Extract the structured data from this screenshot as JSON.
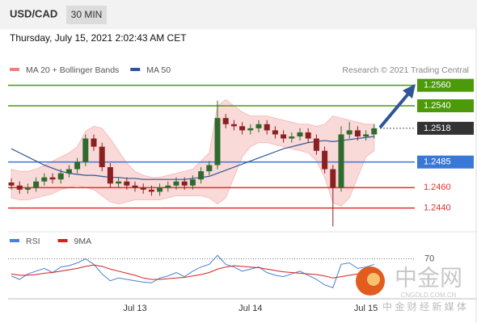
{
  "header": {
    "symbol": "USD/CAD",
    "timeframe": "30 MIN",
    "timestamp": "Thursday, July 15, 2021 2:02:43 AM CET"
  },
  "chart_data": [
    {
      "type": "candlestick",
      "credit": "Research © 2021 Trading Central",
      "categories": [
        null,
        null,
        null,
        null,
        null,
        null,
        null,
        null,
        null,
        null,
        null,
        null,
        null,
        null,
        null,
        "Jul 13",
        null,
        null,
        null,
        null,
        null,
        null,
        null,
        null,
        null,
        null,
        null,
        null,
        null,
        "Jul 14",
        null,
        null,
        null,
        null,
        null,
        null,
        null,
        null,
        null,
        null,
        null,
        null,
        null,
        "Jul 15",
        null
      ],
      "open": [
        1.2465,
        1.2462,
        1.2458,
        1.246,
        1.2466,
        1.247,
        1.2468,
        1.2474,
        1.2478,
        1.2485,
        1.2508,
        1.25,
        1.248,
        1.2464,
        1.2466,
        1.2462,
        1.246,
        1.2458,
        1.2456,
        1.246,
        1.2462,
        1.2466,
        1.2462,
        1.2468,
        1.2476,
        1.2482,
        1.2528,
        1.2522,
        1.252,
        1.2516,
        1.2518,
        1.2522,
        1.2516,
        1.2512,
        1.2508,
        1.251,
        1.2514,
        1.2508,
        1.2496,
        1.2478,
        1.246,
        1.2512,
        1.2516,
        1.251,
        1.2512
      ],
      "high": [
        1.2469,
        1.2466,
        1.2464,
        1.247,
        1.2474,
        1.2474,
        1.2478,
        1.2482,
        1.2489,
        1.2512,
        1.2512,
        1.2504,
        1.2484,
        1.247,
        1.247,
        1.2466,
        1.2464,
        1.2462,
        1.2464,
        1.2466,
        1.247,
        1.247,
        1.2472,
        1.248,
        1.2486,
        1.2545,
        1.2532,
        1.2526,
        1.2524,
        1.2522,
        1.2526,
        1.2526,
        1.252,
        1.2516,
        1.2514,
        1.2518,
        1.2518,
        1.2512,
        1.25,
        1.2482,
        1.252,
        1.2524,
        1.252,
        1.2516,
        1.2522
      ],
      "low": [
        1.2458,
        1.2454,
        1.2454,
        1.2456,
        1.2462,
        1.2464,
        1.2464,
        1.247,
        1.2474,
        1.2481,
        1.2496,
        1.2476,
        1.246,
        1.246,
        1.2458,
        1.2456,
        1.2454,
        1.2452,
        1.2452,
        1.2456,
        1.2458,
        1.2458,
        1.2458,
        1.2464,
        1.2472,
        1.2478,
        1.2518,
        1.2516,
        1.2512,
        1.2512,
        1.2514,
        1.2512,
        1.2508,
        1.2504,
        1.2504,
        1.2506,
        1.2504,
        1.2492,
        1.2474,
        1.2422,
        1.2456,
        1.2508,
        1.2506,
        1.2506,
        1.2508
      ],
      "close": [
        1.2462,
        1.2458,
        1.246,
        1.2466,
        1.247,
        1.2468,
        1.2474,
        1.2478,
        1.2485,
        1.2508,
        1.25,
        1.248,
        1.2464,
        1.2466,
        1.2462,
        1.246,
        1.2458,
        1.2456,
        1.246,
        1.2462,
        1.2466,
        1.2462,
        1.2468,
        1.2476,
        1.2482,
        1.2528,
        1.2522,
        1.252,
        1.2516,
        1.2518,
        1.2522,
        1.2516,
        1.2512,
        1.2508,
        1.251,
        1.2514,
        1.2508,
        1.2496,
        1.2478,
        1.246,
        1.2512,
        1.2516,
        1.251,
        1.2512,
        1.2518
      ],
      "up_color": "#2f6b2f",
      "down_color": "#8b2020",
      "ylim": [
        1.242,
        1.257
      ],
      "series": [
        {
          "name": "MA 20 + Bollinger Bands",
          "color": "#f08080",
          "upper": [
            1.2478,
            1.2476,
            1.2476,
            1.2478,
            1.2482,
            1.2486,
            1.249,
            1.2494,
            1.25,
            1.2515,
            1.252,
            1.2518,
            1.2508,
            1.2496,
            1.2484,
            1.2476,
            1.2472,
            1.247,
            1.247,
            1.2472,
            1.2474,
            1.2476,
            1.2478,
            1.2486,
            1.2494,
            1.254,
            1.2546,
            1.254,
            1.2534,
            1.253,
            1.253,
            1.253,
            1.2528,
            1.2526,
            1.2524,
            1.2522,
            1.2522,
            1.252,
            1.2522,
            1.253,
            1.2528,
            1.2526,
            1.2524,
            1.2522,
            1.2522
          ],
          "lower": [
            1.245,
            1.2448,
            1.2448,
            1.245,
            1.2452,
            1.2454,
            1.2458,
            1.246,
            1.2462,
            1.246,
            1.2458,
            1.2452,
            1.2446,
            1.2444,
            1.2446,
            1.2448,
            1.2448,
            1.2448,
            1.2448,
            1.245,
            1.2452,
            1.2452,
            1.2452,
            1.2452,
            1.245,
            1.2444,
            1.245,
            1.247,
            1.249,
            1.25,
            1.2504,
            1.2504,
            1.2502,
            1.25,
            1.2498,
            1.2496,
            1.2494,
            1.2486,
            1.247,
            1.2445,
            1.2442,
            1.245,
            1.247,
            1.249,
            1.2496
          ]
        },
        {
          "name": "MA 50",
          "color": "#2f5597",
          "values": [
            1.2498,
            1.2494,
            1.249,
            1.2486,
            1.2482,
            1.2479,
            1.2476,
            1.2474,
            1.2473,
            1.2472,
            1.2472,
            1.2471,
            1.247,
            1.247,
            1.2469,
            1.2469,
            1.2468,
            1.2468,
            1.2468,
            1.2468,
            1.2468,
            1.2468,
            1.2469,
            1.247,
            1.2471,
            1.2474,
            1.2477,
            1.248,
            1.2483,
            1.2486,
            1.2489,
            1.2492,
            1.2495,
            1.2498,
            1.25,
            1.2502,
            1.2504,
            1.2505,
            1.2506,
            1.2505,
            1.2506,
            1.2507,
            1.2508,
            1.2509,
            1.251
          ]
        }
      ],
      "levels": [
        {
          "value": 1.256,
          "label": "1.2560",
          "color": "#4c9a0a",
          "boxed": true,
          "line": "solid"
        },
        {
          "value": 1.254,
          "label": "1.2540",
          "color": "#4c9a0a",
          "boxed": true,
          "line": "solid"
        },
        {
          "value": 1.2518,
          "label": "1.2518",
          "color": "#333333",
          "boxed": true,
          "line": "dotted"
        },
        {
          "value": 1.2485,
          "label": "1.2485",
          "color": "#3a78d8",
          "boxed": true,
          "line": "solid"
        },
        {
          "value": 1.246,
          "label": "1.2460",
          "color": "#e03030",
          "boxed": false,
          "line": "solid"
        },
        {
          "value": 1.244,
          "label": "1.2440",
          "color": "#e03030",
          "boxed": false,
          "line": "solid"
        }
      ]
    },
    {
      "type": "line",
      "ylim": [
        0,
        100
      ],
      "yticks": [
        70
      ],
      "series": [
        {
          "name": "RSI",
          "color": "#4a7fd4",
          "values": [
            45,
            40,
            48,
            52,
            56,
            50,
            58,
            60,
            64,
            70,
            62,
            48,
            38,
            42,
            40,
            38,
            36,
            35,
            42,
            45,
            50,
            44,
            52,
            58,
            62,
            75,
            62,
            58,
            52,
            55,
            58,
            50,
            46,
            44,
            48,
            52,
            46,
            40,
            32,
            28,
            62,
            64,
            56,
            58,
            62
          ]
        },
        {
          "name": "9MA",
          "color": "#d42020",
          "values": [
            48,
            46,
            46,
            47,
            49,
            50,
            52,
            54,
            56,
            59,
            61,
            59,
            55,
            52,
            49,
            46,
            42,
            40,
            40,
            41,
            42,
            43,
            45,
            47,
            50,
            55,
            58,
            60,
            59,
            58,
            57,
            55,
            53,
            51,
            50,
            49,
            48,
            47,
            45,
            42,
            44,
            46,
            48,
            50,
            54
          ]
        }
      ]
    }
  ],
  "watermark": {
    "brand": "中金网",
    "site": "CNGOLD.COM.CN",
    "slogan": "中 金 财 经 新 媒 体"
  }
}
